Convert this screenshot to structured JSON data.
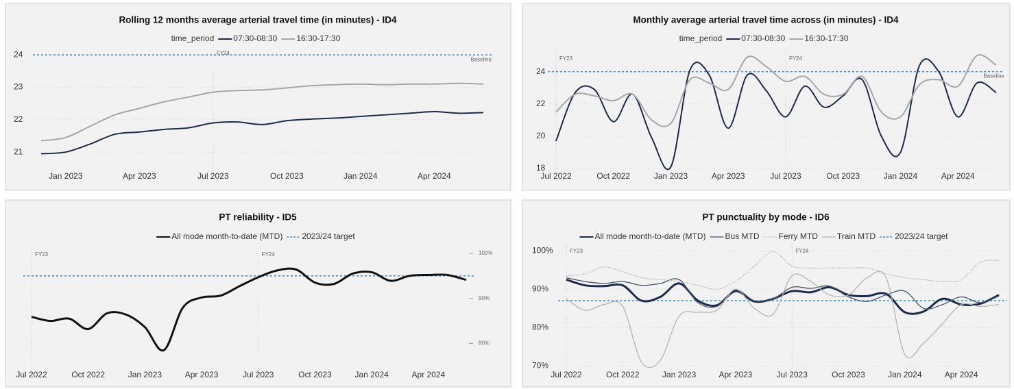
{
  "chart_data": [
    {
      "type": "line",
      "title": "Rolling 12 months average arterial travel time (in minutes) - ID4",
      "legend_title": "time_period",
      "x": [
        "2022-12",
        "2023-01",
        "2023-02",
        "2023-03",
        "2023-04",
        "2023-05",
        "2023-06",
        "2023-07",
        "2023-08",
        "2023-09",
        "2023-10",
        "2023-11",
        "2023-12",
        "2024-01",
        "2024-02",
        "2024-03",
        "2024-04",
        "2024-05",
        "2024-06"
      ],
      "xlim": [
        "2022-12",
        "2024-06"
      ],
      "xticks": [
        {
          "value": "2023-01",
          "label": "Jan 2023"
        },
        {
          "value": "2023-04",
          "label": "Apr 2023"
        },
        {
          "value": "2023-07",
          "label": "Jul 2023"
        },
        {
          "value": "2023-10",
          "label": "Oct 2023"
        },
        {
          "value": "2024-01",
          "label": "Jan 2024"
        },
        {
          "value": "2024-04",
          "label": "Apr 2024"
        }
      ],
      "ylim": [
        20.6,
        24.3
      ],
      "yticks": [
        21,
        22,
        23,
        24
      ],
      "grid": true,
      "y_axis_side": "left",
      "series": [
        {
          "name": "07:30-08:30",
          "color": "#1c2b4b",
          "line_width": 2,
          "style": "solid",
          "values": [
            20.95,
            21.0,
            21.25,
            21.55,
            21.62,
            21.7,
            21.75,
            21.9,
            21.93,
            21.85,
            21.97,
            22.02,
            22.05,
            22.1,
            22.15,
            22.2,
            22.25,
            22.2,
            22.22
          ]
        },
        {
          "name": "16:30-17:30",
          "color": "#a6a6a6",
          "line_width": 2,
          "style": "solid",
          "values": [
            21.35,
            21.45,
            21.8,
            22.15,
            22.35,
            22.55,
            22.7,
            22.85,
            22.9,
            22.92,
            22.98,
            23.05,
            23.08,
            23.1,
            23.08,
            23.1,
            23.1,
            23.12,
            23.1
          ]
        }
      ],
      "reference_line": {
        "label": "Baseline",
        "value": 24,
        "color": "#3d8fd1"
      },
      "period_markers": [
        {
          "x": "2023-07",
          "label": "FY24"
        }
      ]
    },
    {
      "type": "line",
      "title": "Monthly average arterial travel time across (in minutes) - ID4",
      "legend_title": "time_period",
      "x": [
        "2022-07",
        "2022-08",
        "2022-09",
        "2022-10",
        "2022-11",
        "2022-12",
        "2023-01",
        "2023-02",
        "2023-03",
        "2023-04",
        "2023-05",
        "2023-06",
        "2023-07",
        "2023-08",
        "2023-09",
        "2023-10",
        "2023-11",
        "2023-12",
        "2024-01",
        "2024-02",
        "2024-03",
        "2024-04",
        "2024-05",
        "2024-06"
      ],
      "xlim": [
        "2022-07",
        "2024-06"
      ],
      "xticks": [
        {
          "value": "2022-07",
          "label": "Jul 2022"
        },
        {
          "value": "2022-10",
          "label": "Oct 2022"
        },
        {
          "value": "2023-01",
          "label": "Jan 2023"
        },
        {
          "value": "2023-04",
          "label": "Apr 2023"
        },
        {
          "value": "2023-07",
          "label": "Jul 2023"
        },
        {
          "value": "2023-10",
          "label": "Oct 2023"
        },
        {
          "value": "2024-01",
          "label": "Jan 2024"
        },
        {
          "value": "2024-04",
          "label": "Apr 2024"
        }
      ],
      "ylim": [
        18,
        25.3
      ],
      "yticks": [
        18,
        20,
        22,
        24
      ],
      "grid": true,
      "y_axis_side": "left",
      "series": [
        {
          "name": "07:30-08:30",
          "color": "#1c2b4b",
          "line_width": 2,
          "style": "solid",
          "values": [
            19.7,
            22.7,
            22.9,
            20.9,
            22.6,
            19.9,
            18.1,
            24.1,
            23.8,
            20.5,
            23.8,
            22.8,
            21.2,
            23.1,
            21.8,
            22.5,
            23.5,
            20.0,
            19.0,
            24.4,
            24.0,
            21.2,
            23.3,
            22.7
          ]
        },
        {
          "name": "16:30-17:30",
          "color": "#a6a6a6",
          "line_width": 2,
          "style": "solid",
          "values": [
            21.5,
            22.6,
            22.5,
            22.2,
            22.6,
            21.0,
            20.8,
            23.5,
            23.3,
            22.9,
            24.9,
            24.3,
            23.4,
            23.7,
            22.6,
            22.6,
            23.7,
            21.5,
            21.2,
            23.2,
            23.5,
            23.1,
            25.0,
            24.4
          ]
        }
      ],
      "reference_line": {
        "label": "Baseline",
        "value": 24,
        "color": "#3d8fd1"
      },
      "period_markers": [
        {
          "x": "2022-07",
          "label": "FY23"
        },
        {
          "x": "2023-07",
          "label": "FY24"
        }
      ]
    },
    {
      "type": "line",
      "title": "PT reliability - ID5",
      "x": [
        "2022-07",
        "2022-08",
        "2022-09",
        "2022-10",
        "2022-11",
        "2022-12",
        "2023-01",
        "2023-02",
        "2023-03",
        "2023-04",
        "2023-05",
        "2023-06",
        "2023-07",
        "2023-08",
        "2023-09",
        "2023-10",
        "2023-11",
        "2023-12",
        "2024-01",
        "2024-02",
        "2024-03",
        "2024-04",
        "2024-05",
        "2024-06"
      ],
      "xlim": [
        "2022-07",
        "2024-06"
      ],
      "xticks": [
        {
          "value": "2022-07",
          "label": "Jul 2022"
        },
        {
          "value": "2022-10",
          "label": "Oct 2022"
        },
        {
          "value": "2023-01",
          "label": "Jan 2023"
        },
        {
          "value": "2023-04",
          "label": "Apr 2023"
        },
        {
          "value": "2023-07",
          "label": "Jul 2023"
        },
        {
          "value": "2023-10",
          "label": "Oct 2023"
        },
        {
          "value": "2024-01",
          "label": "Jan 2024"
        },
        {
          "value": "2024-04",
          "label": "Apr 2024"
        }
      ],
      "ylim": [
        74,
        101.5
      ],
      "yticks": [
        {
          "value": 80,
          "label": "80%"
        },
        {
          "value": 90,
          "label": "90%"
        },
        {
          "value": 100,
          "label": "100%"
        }
      ],
      "grid": false,
      "y_axis_side": "right",
      "series": [
        {
          "name": "All mode month-to-date (MTD)",
          "color": "#111111",
          "line_width": 3,
          "style": "solid",
          "values": [
            85.9,
            85.0,
            85.5,
            83.2,
            86.7,
            86.4,
            83.6,
            78.5,
            87.9,
            90.2,
            90.6,
            92.7,
            94.7,
            96.2,
            96.4,
            93.5,
            93.2,
            95.5,
            95.8,
            93.9,
            95.0,
            95.2,
            95.2,
            94.1
          ]
        }
      ],
      "reference_line": {
        "name": "2023/24 target",
        "value": 95,
        "color": "#3d8fd1"
      },
      "period_markers": [
        {
          "x": "2022-07",
          "label": "FY23"
        },
        {
          "x": "2023-07",
          "label": "FY24"
        }
      ]
    },
    {
      "type": "line",
      "title": "PT punctuality by mode - ID6",
      "x": [
        "2022-07",
        "2022-08",
        "2022-09",
        "2022-10",
        "2022-11",
        "2022-12",
        "2023-01",
        "2023-02",
        "2023-03",
        "2023-04",
        "2023-05",
        "2023-06",
        "2023-07",
        "2023-08",
        "2023-09",
        "2023-10",
        "2023-11",
        "2023-12",
        "2024-01",
        "2024-02",
        "2024-03",
        "2024-04",
        "2024-05",
        "2024-06"
      ],
      "xlim": [
        "2022-07",
        "2024-06"
      ],
      "xticks": [
        {
          "value": "2022-07",
          "label": "Jul 2022"
        },
        {
          "value": "2022-10",
          "label": "Oct 2022"
        },
        {
          "value": "2023-01",
          "label": "Jan 2023"
        },
        {
          "value": "2023-04",
          "label": "Apr 2023"
        },
        {
          "value": "2023-07",
          "label": "Jul 2023"
        },
        {
          "value": "2023-10",
          "label": "Oct 2023"
        },
        {
          "value": "2024-01",
          "label": "Jan 2024"
        },
        {
          "value": "2024-04",
          "label": "Apr 2024"
        }
      ],
      "ylim": [
        69,
        102
      ],
      "yticks": [
        {
          "value": 70,
          "label": "70%"
        },
        {
          "value": 80,
          "label": "80%"
        },
        {
          "value": 90,
          "label": "90%"
        },
        {
          "value": 100,
          "label": "100%"
        }
      ],
      "grid": true,
      "y_axis_side": "left",
      "series": [
        {
          "name": "All mode month-to-date (MTD)",
          "color": "#1c2b4b",
          "line_width": 3,
          "style": "solid",
          "values": [
            92.5,
            91,
            90.8,
            91,
            87,
            88,
            91.5,
            87,
            85.8,
            89.5,
            86.8,
            87.5,
            89.5,
            89.2,
            90.5,
            88.5,
            88.2,
            88.8,
            84,
            84.2,
            87.5,
            86,
            86.2,
            88.5
          ]
        },
        {
          "name": "Bus MTD",
          "color": "#44546a",
          "line_width": 1.3,
          "style": "solid",
          "values": [
            93,
            92,
            91.5,
            92,
            91,
            91.5,
            92.5,
            86.5,
            85.5,
            89.8,
            87,
            87.5,
            90.5,
            90.2,
            90.8,
            88,
            86.8,
            88.5,
            89.5,
            85,
            86,
            88,
            86.5,
            88.2
          ]
        },
        {
          "name": "Ferry MTD",
          "color": "#a6a6a6",
          "line_width": 1.3,
          "style": "dotted",
          "values": [
            93.5,
            94,
            95.8,
            94.5,
            93,
            92.5,
            92,
            91,
            90,
            92,
            96,
            99.8,
            96,
            95.5,
            95.5,
            95.5,
            95.5,
            94,
            93,
            92.5,
            92,
            92.5,
            97,
            97.5
          ]
        },
        {
          "name": "Train MTD",
          "color": "#b4b4b4",
          "line_width": 1.3,
          "style": "solid",
          "values": [
            87.5,
            84.5,
            86,
            85.5,
            71,
            71.5,
            83,
            84,
            84.5,
            90,
            85,
            83.5,
            93.5,
            92,
            88.5,
            88.5,
            93,
            93,
            73,
            76,
            81,
            86,
            85.5,
            86
          ]
        }
      ],
      "reference_line": {
        "name": "2023/24 target",
        "value": 87,
        "color": "#3d8fd1"
      },
      "period_markers": [
        {
          "x": "2022-07",
          "label": "FY23"
        },
        {
          "x": "2023-07",
          "label": "FY24"
        }
      ]
    }
  ]
}
